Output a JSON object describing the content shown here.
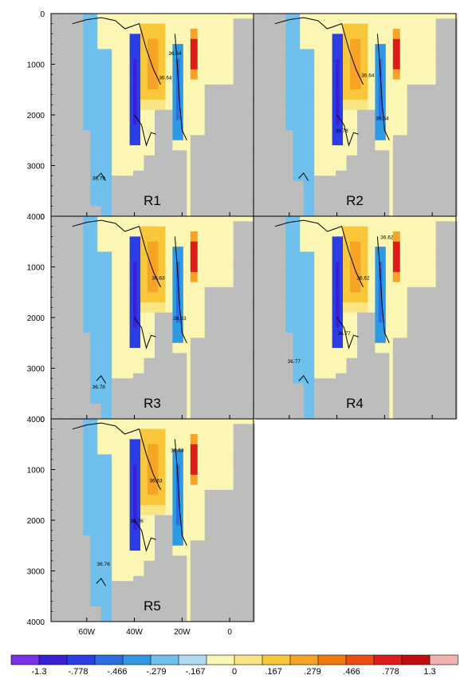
{
  "chart_data": {
    "type": "heatmap",
    "x_axis": {
      "range": [
        -75,
        10
      ],
      "ticks": [
        {
          "value": -60,
          "label": "60W"
        },
        {
          "value": -40,
          "label": "40W"
        },
        {
          "value": -20,
          "label": "20W"
        },
        {
          "value": 0,
          "label": "0"
        }
      ]
    },
    "y_axis": {
      "range": [
        0,
        4000
      ],
      "reversed": true,
      "ticks": [
        0,
        1000,
        2000,
        3000,
        4000
      ]
    },
    "colorbar": {
      "labels": [
        "-1.3",
        "-.778",
        "-.466",
        "-.279",
        "-.167",
        "0",
        ".167",
        ".279",
        ".466",
        ".778",
        "1.3"
      ],
      "colors": [
        "#7b30e8",
        "#3a1fd6",
        "#2b3ee6",
        "#2d6de3",
        "#2f9ae3",
        "#6fc0ec",
        "#aedbf2",
        "#fbf6b4",
        "#f7e683",
        "#f8c73b",
        "#f7a326",
        "#f47a10",
        "#ee4d12",
        "#de1d1b",
        "#c20d10",
        "#f3b2b0"
      ],
      "missing_color": "#bdbdbd"
    },
    "panels": [
      {
        "name": "R1",
        "deep_west_bottom": 3750,
        "contour_labels": [
          {
            "text": "36.64",
            "x": -27,
            "y": 1300
          },
          {
            "text": "36.64",
            "x": -23,
            "y": 820
          },
          {
            "text": "36.79",
            "x": -55,
            "y": 3280
          }
        ]
      },
      {
        "name": "R2",
        "deep_west_bottom": 3300,
        "contour_labels": [
          {
            "text": "36.64",
            "x": -27,
            "y": 1250
          },
          {
            "text": "36.78",
            "x": -38,
            "y": 2350
          },
          {
            "text": "36.64",
            "x": -21,
            "y": 2100
          }
        ]
      },
      {
        "name": "R3",
        "deep_west_bottom": 3700,
        "contour_labels": [
          {
            "text": "36.63",
            "x": -30,
            "y": 1250
          },
          {
            "text": "36.63",
            "x": -21,
            "y": 2050
          },
          {
            "text": "36.78",
            "x": -55,
            "y": 3400
          }
        ]
      },
      {
        "name": "R4",
        "deep_west_bottom": 3300,
        "contour_labels": [
          {
            "text": "36.62",
            "x": -19,
            "y": 450
          },
          {
            "text": "36.62",
            "x": -29,
            "y": 1250
          },
          {
            "text": "36.77",
            "x": -37,
            "y": 2350
          },
          {
            "text": "36.77",
            "x": -58,
            "y": 2900
          }
        ]
      },
      {
        "name": "R5",
        "deep_west_bottom": 3700,
        "contour_labels": [
          {
            "text": "36.63",
            "x": -22,
            "y": 650
          },
          {
            "text": "36.63",
            "x": -31,
            "y": 1250
          },
          {
            "text": "36.76",
            "x": -39,
            "y": 2050
          },
          {
            "text": "36.76",
            "x": -53,
            "y": 2900
          }
        ]
      }
    ]
  }
}
